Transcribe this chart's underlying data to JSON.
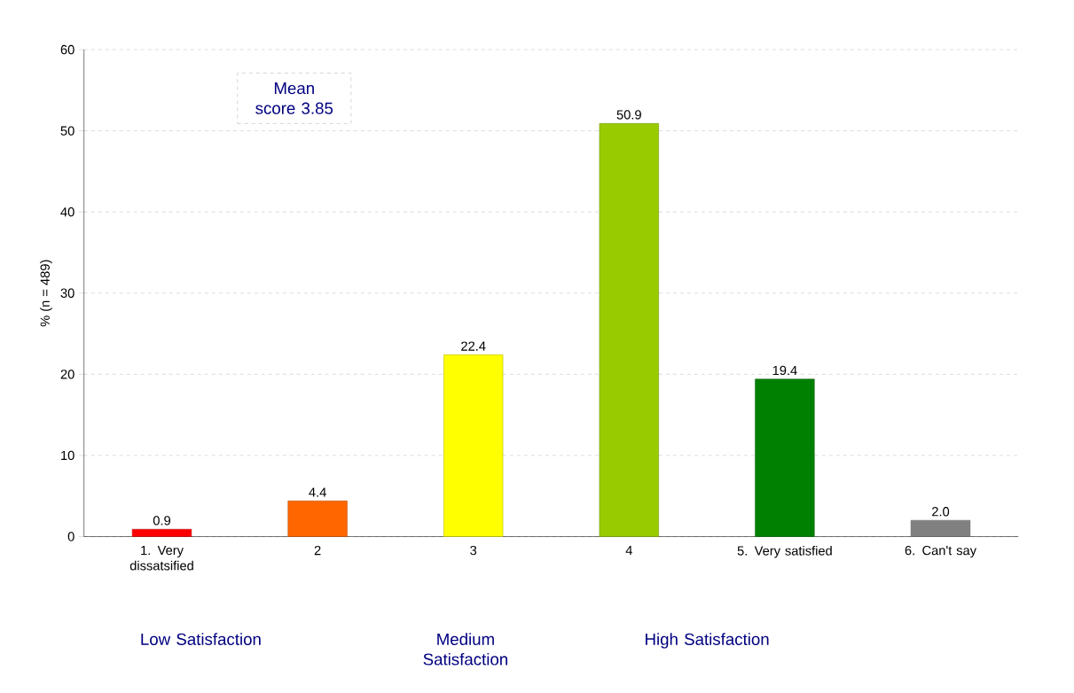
{
  "chart_data": {
    "type": "bar",
    "ylabel": "% (n = 489)",
    "categories": [
      "1. Very dissatsified",
      "2",
      "3",
      "4",
      "5. Very satisfied",
      "6. Can't say"
    ],
    "values": [
      0.9,
      4.4,
      22.4,
      50.9,
      19.4,
      2.0
    ],
    "colors": [
      "#ff0000",
      "#ff6600",
      "#ffff00",
      "#99cc00",
      "#008000",
      "#808080"
    ],
    "ylim": [
      0,
      60
    ],
    "yticks": [
      0,
      10,
      20,
      30,
      40,
      50,
      60
    ],
    "grid": "y",
    "value_labels": [
      "0.9",
      "4.4",
      "22.4",
      "50.9",
      "19.4",
      "2.0"
    ],
    "annotations": [
      "Mean score 3.85",
      "Low Satisfaction",
      "Medium Satisfaction",
      "High Satisfaction"
    ]
  }
}
